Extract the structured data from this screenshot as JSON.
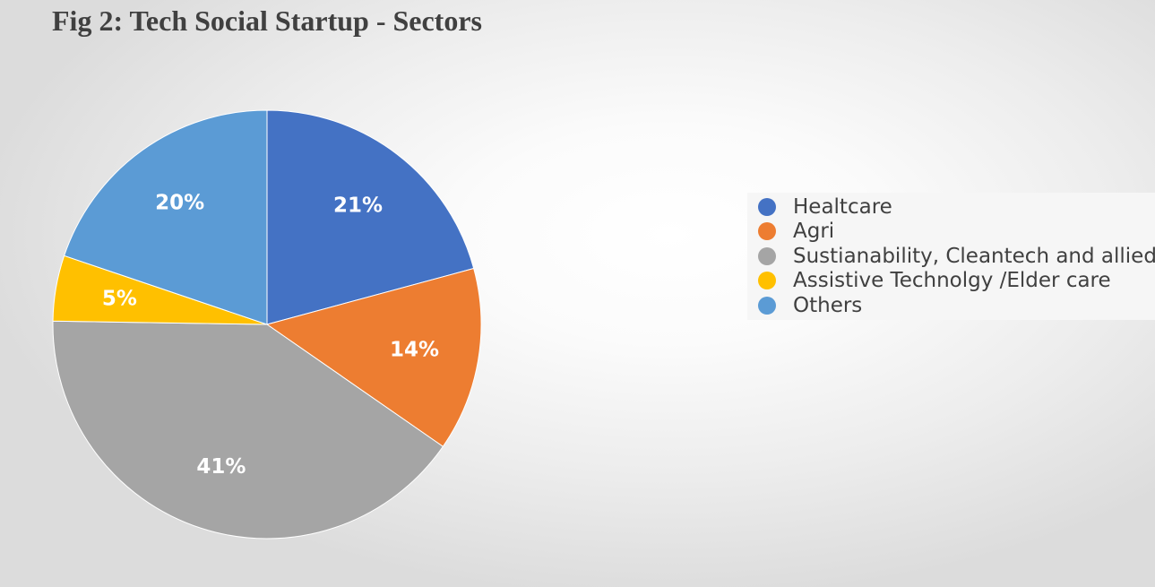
{
  "chart_data": {
    "type": "pie",
    "title": "Fig 2: Tech Social Startup - Sectors",
    "categories": [
      "Healtcare",
      "Agri",
      "Sustianability, Cleantech and allied",
      "Assistive Technolgy /Elder care",
      "Others"
    ],
    "values": [
      21,
      14,
      41,
      5,
      20
    ],
    "data_labels": [
      "21%",
      "14%",
      "41%",
      "5%",
      "20%"
    ],
    "colors": [
      "#4472c4",
      "#ed7d31",
      "#a5a5a5",
      "#ffc000",
      "#5b9bd5"
    ],
    "start_angle_deg": 0,
    "direction": "clockwise",
    "legend_position": "right"
  }
}
